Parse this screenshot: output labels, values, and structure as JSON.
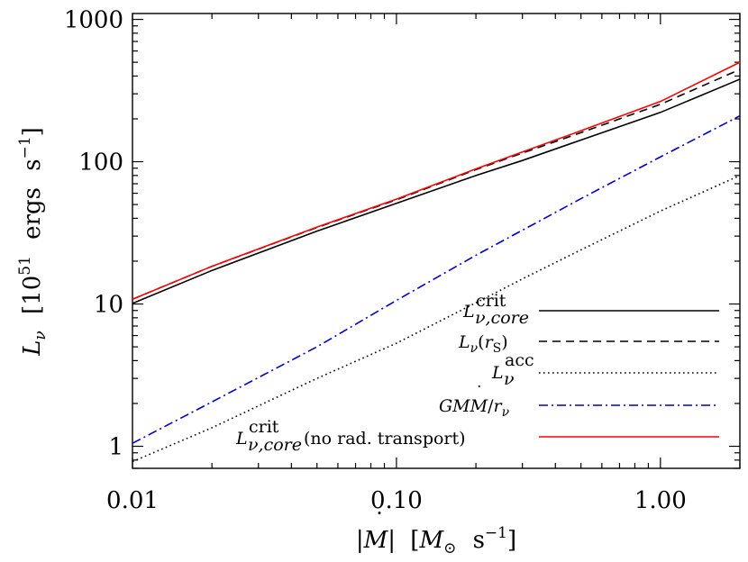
{
  "chart_data": {
    "type": "line",
    "xscale": "log",
    "yscale": "log",
    "xlim": [
      0.01,
      2.0
    ],
    "ylim": [
      0.7,
      1100
    ],
    "xticks": [
      0.01,
      0.1,
      1.0
    ],
    "xtick_labels": [
      "0.01",
      "0.10",
      "1.00"
    ],
    "yticks": [
      1,
      10,
      100,
      1000
    ],
    "ytick_labels": [
      "1",
      "10",
      "100",
      "1000"
    ],
    "xlabel": {
      "bar_open": "|",
      "symbol": "M",
      "dot": "˙",
      "bar_close": "|",
      "unit_open": "[",
      "unit_symbol": "M",
      "unit_sub": "⊙",
      "unit_s": "s",
      "unit_exp": "−1",
      "unit_close": "]"
    },
    "ylabel": {
      "symbol": "L",
      "sub": "ν",
      "unit_open": "[10",
      "unit_exp": "51",
      "unit_ergs": "ergs",
      "unit_s": "s",
      "unit_sexp": "−1",
      "unit_close": "]"
    },
    "legend_position": "bottom-right",
    "grid": false,
    "series": [
      {
        "key": "crit",
        "color": "#000000",
        "dash": "solid",
        "x": [
          0.01,
          0.02,
          0.05,
          0.1,
          0.2,
          0.3,
          0.5,
          1.0,
          2.0
        ],
        "y": [
          10.1,
          17.2,
          32.5,
          51.0,
          80.0,
          102.0,
          142.0,
          222.0,
          380.0
        ]
      },
      {
        "key": "rs",
        "color": "#000000",
        "dash": "dashed",
        "x": [
          0.01,
          0.02,
          0.05,
          0.1,
          0.2,
          0.3,
          0.5,
          1.0,
          2.0
        ],
        "y": [
          10.8,
          18.4,
          34.5,
          54.0,
          88.0,
          115.0,
          160.0,
          253.0,
          445.0
        ]
      },
      {
        "key": "acc",
        "color": "#000000",
        "dash": "dotted",
        "x": [
          0.01,
          0.02,
          0.05,
          0.1,
          0.2,
          0.3,
          0.5,
          1.0,
          2.0
        ],
        "y": [
          0.78,
          1.35,
          3.0,
          5.3,
          10.2,
          15.0,
          24.0,
          45.0,
          80.0
        ]
      },
      {
        "key": "gmm",
        "color": "#0000cc",
        "dash": "dashdot",
        "x": [
          0.01,
          0.02,
          0.05,
          0.1,
          0.2,
          0.3,
          0.5,
          1.0,
          2.0
        ],
        "y": [
          1.05,
          2.05,
          5.0,
          10.6,
          22.0,
          33.0,
          55.0,
          108.0,
          210.0
        ]
      },
      {
        "key": "norad",
        "color": "#ff0000",
        "dash": "solid",
        "x": [
          0.01,
          0.02,
          0.05,
          0.1,
          0.2,
          0.3,
          0.5,
          1.0,
          2.0
        ],
        "y": [
          10.8,
          18.4,
          34.7,
          54.5,
          89.0,
          117.0,
          165.0,
          265.0,
          500.0
        ]
      }
    ],
    "legend": {
      "crit": {
        "L": "L",
        "sup": "crit",
        "sub": "ν,core"
      },
      "rs": {
        "L": "L",
        "sub": "ν",
        "open": "(",
        "r": "r",
        "rsub": "S",
        "close": ")"
      },
      "acc": {
        "L": "L",
        "sup": "acc",
        "sub": "ν"
      },
      "gmm": {
        "G": "GM",
        "M": "M",
        "dot": "˙",
        "slash": "/",
        "r": "r",
        "rsub": "ν"
      },
      "norad": {
        "L": "L",
        "sup": "crit",
        "sub": "ν,core",
        "note": "(no rad. transport)"
      }
    }
  }
}
